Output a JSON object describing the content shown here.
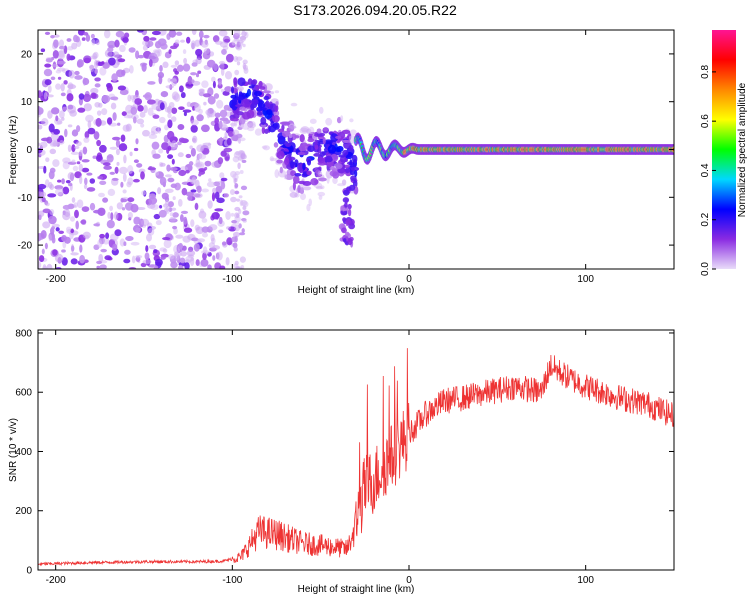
{
  "title": "S173.2026.094.20.05.R22",
  "chart_data": [
    {
      "type": "heatmap",
      "name": "spectrogram",
      "xlabel": "Height of straight line (km)",
      "ylabel": "Frequency (Hz)",
      "xlim": [
        -210,
        150
      ],
      "ylim": [
        -25,
        25
      ],
      "xticks": [
        -200,
        -100,
        0,
        100
      ],
      "yticks": [
        -20,
        -10,
        0,
        10,
        20
      ],
      "colorbar": {
        "label": "Normalized spectral amplitude",
        "range": [
          0.0,
          0.97
        ],
        "ticks": [
          0.0,
          0.2,
          0.4,
          0.6,
          0.8
        ],
        "colors": [
          "#e9dcf9",
          "#8a2be2",
          "#0000ff",
          "#00d8ff",
          "#00ff00",
          "#ffff00",
          "#ff8800",
          "#ff0000",
          "#ff1493"
        ]
      },
      "regions": [
        {
          "x_range": [
            -210,
            -100
          ],
          "freq_range": [
            -25,
            25
          ],
          "amplitude": "0.0-0.15",
          "pattern": "scattered noise"
        },
        {
          "x_range": [
            -100,
            -30
          ],
          "freq_range": [
            -20,
            15
          ],
          "amplitude": "0.1-0.3",
          "pattern": "descending band"
        },
        {
          "x_range": [
            -30,
            150
          ],
          "freq_range": [
            -2,
            2
          ],
          "amplitude": "0.4-0.95",
          "pattern": "steady carrier line near 0 Hz"
        }
      ]
    },
    {
      "type": "line",
      "name": "snr",
      "xlabel": "Height of straight line (km)",
      "ylabel": "SNR (10 * v/v)",
      "xlim": [
        -210,
        150
      ],
      "ylim": [
        0,
        810
      ],
      "xticks": [
        -200,
        -100,
        0,
        100
      ],
      "yticks": [
        0,
        200,
        400,
        600,
        800
      ],
      "color": "#ee3333",
      "series": [
        {
          "name": "SNR",
          "x": [
            -210,
            -180,
            -150,
            -120,
            -105,
            -95,
            -85,
            -75,
            -60,
            -45,
            -35,
            -30,
            -25,
            -20,
            -15,
            -10,
            -5,
            0,
            10,
            20,
            30,
            45,
            60,
            75,
            80,
            90,
            100,
            110,
            120,
            135,
            150
          ],
          "y": [
            20,
            25,
            28,
            28,
            30,
            45,
            130,
            120,
            90,
            80,
            70,
            150,
            280,
            300,
            350,
            380,
            420,
            460,
            530,
            570,
            580,
            600,
            620,
            600,
            690,
            650,
            620,
            600,
            580,
            560,
            520
          ]
        }
      ]
    }
  ]
}
